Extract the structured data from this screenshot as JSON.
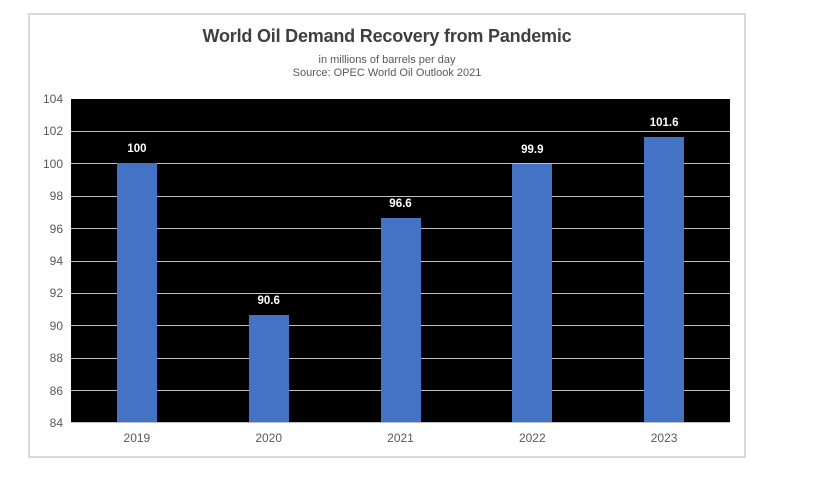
{
  "chart_data": {
    "type": "bar",
    "title": "World Oil Demand Recovery from Pandemic",
    "subtitle": "in millions of barrels per day",
    "source_note": "Source: OPEC World Oil Outlook 2021",
    "categories": [
      "2019",
      "2020",
      "2021",
      "2022",
      "2023"
    ],
    "values": [
      100,
      90.6,
      96.6,
      99.9,
      101.6
    ],
    "value_labels": [
      "100",
      "90.6",
      "96.6",
      "99.9",
      "101.6"
    ],
    "xlabel": "",
    "ylabel": "",
    "ylim": [
      84,
      104
    ],
    "ytick_step": 2,
    "grid": true,
    "legend": "none",
    "colors": {
      "bar": "#4472C4",
      "plot_background": "#000000",
      "gridline": "#BFBFBF",
      "axis_text": "#595959",
      "title_text": "#3F3F3F",
      "subtitle_text": "#595959",
      "data_label": "#FFFFFF",
      "card_border": "#D9D9D9",
      "card_background": "#FFFFFF"
    }
  }
}
